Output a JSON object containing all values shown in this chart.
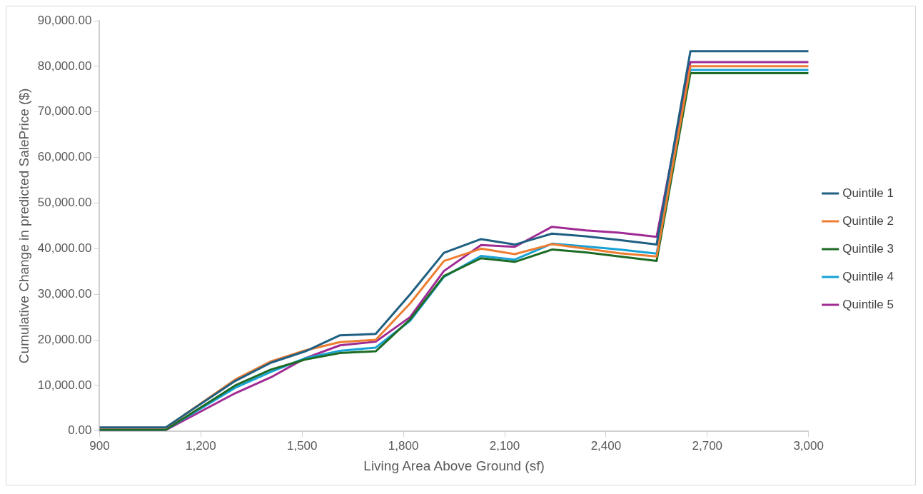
{
  "chart_data": {
    "type": "line",
    "xlabel": "Living Area Above Ground (sf)",
    "ylabel": "Cumulative Change in predicted SalePrice ($)",
    "x": [
      900,
      1096,
      1302,
      1408,
      1510,
      1612,
      1718,
      1820,
      1920,
      2030,
      2130,
      2240,
      2340,
      2440,
      2550,
      2650,
      3000
    ],
    "series": [
      {
        "name": "Quintile 1",
        "color": "#1f5f82",
        "values": [
          800,
          800,
          11000,
          15000,
          17500,
          21000,
          21300,
          30000,
          39100,
          42100,
          40900,
          43300,
          42700,
          41900,
          40900,
          83300,
          83300
        ]
      },
      {
        "name": "Quintile 2",
        "color": "#ed7d31",
        "values": [
          700,
          700,
          11300,
          15300,
          17700,
          19500,
          20000,
          28000,
          37300,
          40000,
          38800,
          41000,
          40000,
          39000,
          38300,
          80000,
          80000
        ]
      },
      {
        "name": "Quintile 3",
        "color": "#1d6b25",
        "values": [
          300,
          300,
          10000,
          13500,
          15700,
          17100,
          17500,
          24500,
          34000,
          37900,
          37100,
          39800,
          39200,
          38300,
          37300,
          78500,
          78500
        ]
      },
      {
        "name": "Quintile 4",
        "color": "#17a2d6",
        "values": [
          300,
          300,
          9500,
          13000,
          16000,
          17600,
          18300,
          24200,
          33800,
          38400,
          37600,
          41100,
          40500,
          39800,
          38900,
          79200,
          79200
        ]
      },
      {
        "name": "Quintile 5",
        "color": "#a02b93",
        "values": [
          200,
          200,
          8300,
          11800,
          16000,
          18800,
          19600,
          25000,
          35100,
          40800,
          40400,
          44800,
          44000,
          43500,
          42600,
          80900,
          80900
        ]
      }
    ],
    "xlim": [
      900,
      3000
    ],
    "xticks": [
      {
        "value": 900,
        "label": "900"
      },
      {
        "value": 1200,
        "label": "1,200"
      },
      {
        "value": 1500,
        "label": "1,500"
      },
      {
        "value": 1800,
        "label": "1,800"
      },
      {
        "value": 2100,
        "label": "2,100"
      },
      {
        "value": 2400,
        "label": "2,400"
      },
      {
        "value": 2700,
        "label": "2,700"
      },
      {
        "value": 3000,
        "label": "3,000"
      }
    ],
    "ylim": [
      0,
      90000
    ],
    "yticks": [
      {
        "value": 0,
        "label": "0.00"
      },
      {
        "value": 10000,
        "label": "10,000.00"
      },
      {
        "value": 20000,
        "label": "20,000.00"
      },
      {
        "value": 30000,
        "label": "30,000.00"
      },
      {
        "value": 40000,
        "label": "40,000.00"
      },
      {
        "value": 50000,
        "label": "50,000.00"
      },
      {
        "value": 60000,
        "label": "60,000.00"
      },
      {
        "value": 70000,
        "label": "70,000.00"
      },
      {
        "value": 80000,
        "label": "80,000.00"
      },
      {
        "value": 90000,
        "label": "90,000.00"
      }
    ],
    "grid": false,
    "legend": "right",
    "marker": "none",
    "line_style": "solid"
  }
}
